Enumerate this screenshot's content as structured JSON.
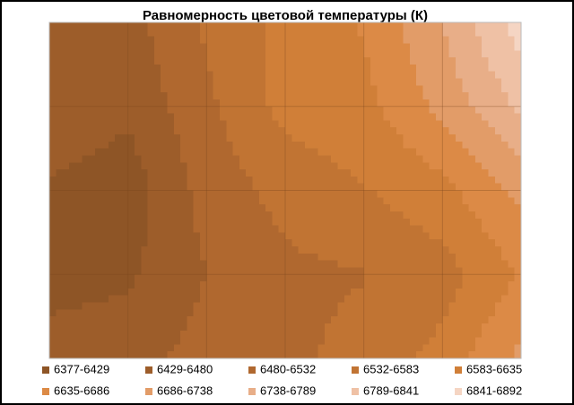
{
  "chart_data": {
    "type": "contour",
    "title": "Равномерность  цветовой температуры (К)",
    "z": [
      [
        6480,
        6460,
        6540,
        6600,
        6640,
        6740,
        6870
      ],
      [
        6470,
        6440,
        6520,
        6600,
        6620,
        6700,
        6800
      ],
      [
        6420,
        6400,
        6500,
        6550,
        6580,
        6620,
        6700
      ],
      [
        6410,
        6420,
        6480,
        6520,
        6530,
        6560,
        6640
      ],
      [
        6450,
        6460,
        6500,
        6520,
        6550,
        6600,
        6700
      ]
    ],
    "levels": [
      6377,
      6429,
      6480,
      6532,
      6583,
      6635,
      6686,
      6738,
      6789,
      6841,
      6892
    ],
    "series": [
      {
        "name": "6377-6429",
        "color": "#8e5526"
      },
      {
        "name": "6429-6480",
        "color": "#9d5d2a"
      },
      {
        "name": "6480-6532",
        "color": "#b0682f"
      },
      {
        "name": "6532-6583",
        "color": "#c17433"
      },
      {
        "name": "6583-6635",
        "color": "#d07f38"
      },
      {
        "name": "6635-6686",
        "color": "#dc8a46"
      },
      {
        "name": "6686-6738",
        "color": "#e29c68"
      },
      {
        "name": "6738-6789",
        "color": "#e8ae88"
      },
      {
        "name": "6789-6841",
        "color": "#efc1a5"
      },
      {
        "name": "6841-6892",
        "color": "#f5d5c3"
      }
    ]
  }
}
